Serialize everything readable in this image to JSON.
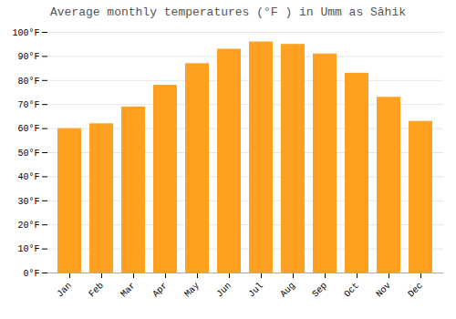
{
  "chart_data": {
    "type": "bar",
    "title": "Average monthly temperatures (°F ) in Umm as Sāhik",
    "categories": [
      "Jan",
      "Feb",
      "Mar",
      "Apr",
      "May",
      "Jun",
      "Jul",
      "Aug",
      "Sep",
      "Oct",
      "Nov",
      "Dec"
    ],
    "values": [
      60,
      62,
      69,
      78,
      87,
      93,
      96,
      95,
      91,
      83,
      73,
      63
    ],
    "color": "#FFA020",
    "ylim": [
      0,
      100
    ],
    "yticks": [
      {
        "value": 0,
        "label": "0°F"
      },
      {
        "value": 10,
        "label": "10°F"
      },
      {
        "value": 20,
        "label": "20°F"
      },
      {
        "value": 30,
        "label": "30°F"
      },
      {
        "value": 40,
        "label": "40°F"
      },
      {
        "value": 50,
        "label": "50°F"
      },
      {
        "value": 60,
        "label": "60°F"
      },
      {
        "value": 70,
        "label": "70°F"
      },
      {
        "value": 80,
        "label": "80°F"
      },
      {
        "value": 90,
        "label": "90°F"
      },
      {
        "value": 100,
        "label": "100°F"
      }
    ],
    "grid": true
  }
}
